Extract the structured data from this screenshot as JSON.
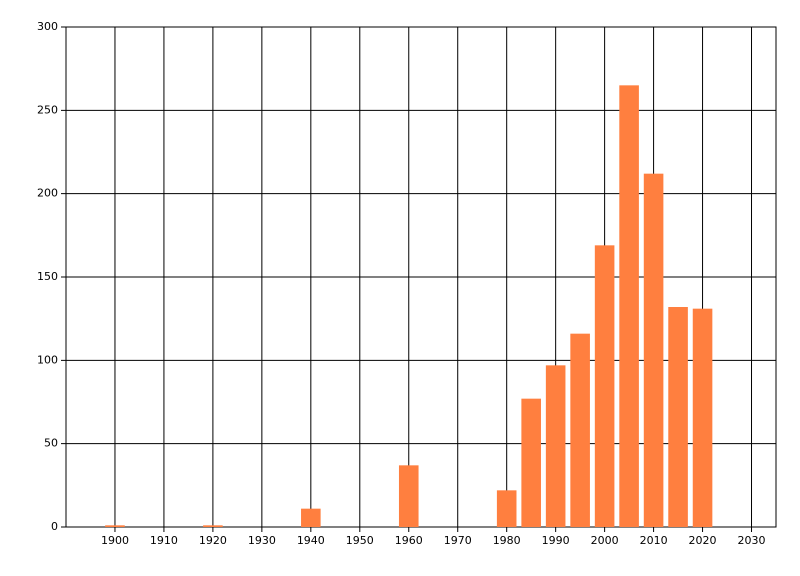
{
  "chart_data": {
    "type": "bar",
    "x": [
      1900,
      1920,
      1940,
      1960,
      1980,
      1985,
      1990,
      1995,
      2000,
      2005,
      2010,
      2015,
      2020
    ],
    "values": [
      1,
      1,
      11,
      37,
      22,
      77,
      97,
      116,
      169,
      265,
      212,
      132,
      131
    ],
    "color": "#ff7f3f",
    "xlim": [
      1890,
      2035
    ],
    "xticks": [
      1900,
      1910,
      1920,
      1930,
      1940,
      1950,
      1960,
      1970,
      1980,
      1990,
      2000,
      2010,
      2020,
      2030
    ],
    "ylim": [
      0,
      300
    ],
    "yticks": [
      0,
      50,
      100,
      150,
      200,
      250,
      300
    ],
    "grid": true
  }
}
